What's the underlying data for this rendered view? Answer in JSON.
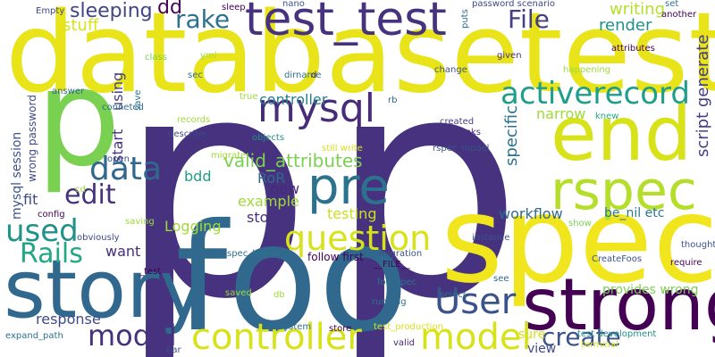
{
  "words": [
    {
      "text": "p",
      "color": "#46327e"
    },
    {
      "text": "p",
      "color": "#46327e"
    },
    {
      "text": "p",
      "color": "#7ad151"
    },
    {
      "text": "databasetest",
      "color": "#e8e419"
    },
    {
      "text": "spec",
      "color": "#f1e51d"
    },
    {
      "text": "foo",
      "color": "#31688e"
    },
    {
      "text": "story",
      "color": "#31688e"
    },
    {
      "text": "end",
      "color": "#d8e219"
    },
    {
      "text": "strong",
      "color": "#440154"
    },
    {
      "text": "test_test",
      "color": "#46327e"
    },
    {
      "text": "pre",
      "color": "#2c728e"
    },
    {
      "text": "rspec",
      "color": "#b5de2b"
    },
    {
      "text": "mysql",
      "color": "#472c7a"
    },
    {
      "text": "question",
      "color": "#d8e219"
    },
    {
      "text": "controller",
      "color": "#d8e219"
    },
    {
      "text": "model",
      "color": "#d8e219"
    },
    {
      "text": "activerecord",
      "color": "#1f9e89"
    },
    {
      "text": "User",
      "color": "#3b528b"
    },
    {
      "text": "model",
      "color": "#46327e"
    },
    {
      "text": "data",
      "color": "#31688e"
    },
    {
      "text": "used",
      "color": "#21918c"
    },
    {
      "text": "Rails",
      "color": "#22a884"
    },
    {
      "text": "edit",
      "color": "#46327e"
    },
    {
      "text": "rake",
      "color": "#2c728e"
    },
    {
      "text": "File",
      "color": "#433e85"
    },
    {
      "text": "create",
      "color": "#3b528b"
    },
    {
      "text": "valid_attributes",
      "color": "#7ad151"
    },
    {
      "text": "sleeping",
      "color": "#414487"
    },
    {
      "text": "dd",
      "color": "#440154"
    },
    {
      "text": "writing",
      "color": "#b5de2b"
    },
    {
      "text": "render",
      "color": "#21918c"
    },
    {
      "text": "stuff",
      "color": "#d8e219"
    },
    {
      "text": "script generate",
      "color": "#433e85"
    },
    {
      "text": "specific",
      "color": "#2c728e"
    },
    {
      "text": "narrow",
      "color": "#a0da39"
    },
    {
      "text": "controller",
      "color": "#26828e"
    },
    {
      "text": "using",
      "color": "#433e85"
    },
    {
      "text": "start",
      "color": "#46327e"
    },
    {
      "text": "bdd",
      "color": "#1f9e89"
    },
    {
      "text": "RoR",
      "color": "#31688e"
    },
    {
      "text": "new",
      "color": "#482878"
    },
    {
      "text": "example",
      "color": "#a0da39"
    },
    {
      "text": "stories",
      "color": "#46327e"
    },
    {
      "text": "testing",
      "color": "#c8e020"
    },
    {
      "text": "workflow",
      "color": "#31688e"
    },
    {
      "text": "be_nil etc",
      "color": "#2a788e"
    },
    {
      "text": "Logging",
      "color": "#a0da39"
    },
    {
      "text": "want",
      "color": "#472d7b"
    },
    {
      "text": "fit",
      "color": "#3e4989"
    },
    {
      "text": "mysql session",
      "color": "#3b528b"
    },
    {
      "text": "wrong password",
      "color": "#3e4989"
    },
    {
      "text": "response",
      "color": "#3e4989"
    },
    {
      "text": "view",
      "color": "#3e4989"
    },
    {
      "text": "sure",
      "color": "#d8e219"
    },
    {
      "text": "provides wrong",
      "color": "#7ad151"
    },
    {
      "text": "follow first",
      "color": "#440154"
    },
    {
      "text": "__FILE__",
      "color": "#440154"
    },
    {
      "text": "foo_spec",
      "color": "#2c728e"
    },
    {
      "text": "store",
      "color": "#440154"
    },
    {
      "text": "still write",
      "color": "#d8e219"
    },
    {
      "text": "migrate",
      "color": "#a0da39"
    },
    {
      "text": "rspec_model",
      "color": "#3b528b"
    },
    {
      "text": "looks",
      "color": "#46327e"
    },
    {
      "text": "created",
      "color": "#433e85"
    },
    {
      "text": "password scenario",
      "color": "#3e4989"
    },
    {
      "text": "attributes",
      "color": "#440154"
    },
    {
      "text": "happening",
      "color": "#a0da39"
    },
    {
      "text": "change",
      "color": "#3b528b"
    },
    {
      "text": "given",
      "color": "#46327e"
    },
    {
      "text": "another",
      "color": "#440154"
    },
    {
      "text": "set",
      "color": "#2c728e"
    },
    {
      "text": "puts",
      "color": "#31688e"
    },
    {
      "text": "nano",
      "color": "#3b528b"
    },
    {
      "text": "sleep",
      "color": "#440154"
    },
    {
      "text": "Empty",
      "color": "#3e4989"
    },
    {
      "text": "yml",
      "color": "#a0da39"
    },
    {
      "text": "dirname",
      "color": "#2c728e"
    },
    {
      "text": "class",
      "color": "#7ad151"
    },
    {
      "text": "sec",
      "color": "#2c728e"
    },
    {
      "text": "d",
      "color": "#482878"
    },
    {
      "text": "true",
      "color": "#a0da39"
    },
    {
      "text": "rb",
      "color": "#31688e"
    },
    {
      "text": "answer",
      "color": "#31688e"
    },
    {
      "text": "conneted",
      "color": "#31688e"
    },
    {
      "text": "save",
      "color": "#2c728e"
    },
    {
      "text": "records",
      "color": "#a0da39"
    },
    {
      "text": "describe",
      "color": "#3e4989"
    },
    {
      "text": "objects",
      "color": "#21918c"
    },
    {
      "text": "knew",
      "color": "#22a884"
    },
    {
      "text": "open",
      "color": "#3b528b"
    },
    {
      "text": "cd",
      "color": "#a0da39"
    },
    {
      "text": "config",
      "color": "#440154"
    },
    {
      "text": "saving",
      "color": "#a0da39"
    },
    {
      "text": "obviously",
      "color": "#3e4989"
    },
    {
      "text": "spec_helper",
      "color": "#2c728e"
    },
    {
      "text": "migration",
      "color": "#3b528b"
    },
    {
      "text": "instance",
      "color": "#3b528b"
    },
    {
      "text": "thought",
      "color": "#3b528b"
    },
    {
      "text": "require",
      "color": "#440154"
    },
    {
      "text": "CreateFoos",
      "color": "#3b528b"
    },
    {
      "text": "show",
      "color": "#7ad151"
    },
    {
      "text": "_test",
      "color": "#440154"
    },
    {
      "text": "saved",
      "color": "#a0da39"
    },
    {
      "text": "db",
      "color": "#a0da39"
    },
    {
      "text": "select",
      "color": "#2c728e"
    },
    {
      "text": "see",
      "color": "#31688e"
    },
    {
      "text": "running",
      "color": "#2c728e"
    },
    {
      "text": "system",
      "color": "#2c728e"
    },
    {
      "text": "test_production",
      "color": "#d8e219"
    },
    {
      "text": "test development",
      "color": "#21918c"
    },
    {
      "text": "terminal",
      "color": "#d8e219"
    },
    {
      "text": "valid",
      "color": "#482878"
    },
    {
      "text": "expand_path",
      "color": "#2c728e"
    },
    {
      "text": "bar",
      "color": "#3e4989"
    }
  ]
}
